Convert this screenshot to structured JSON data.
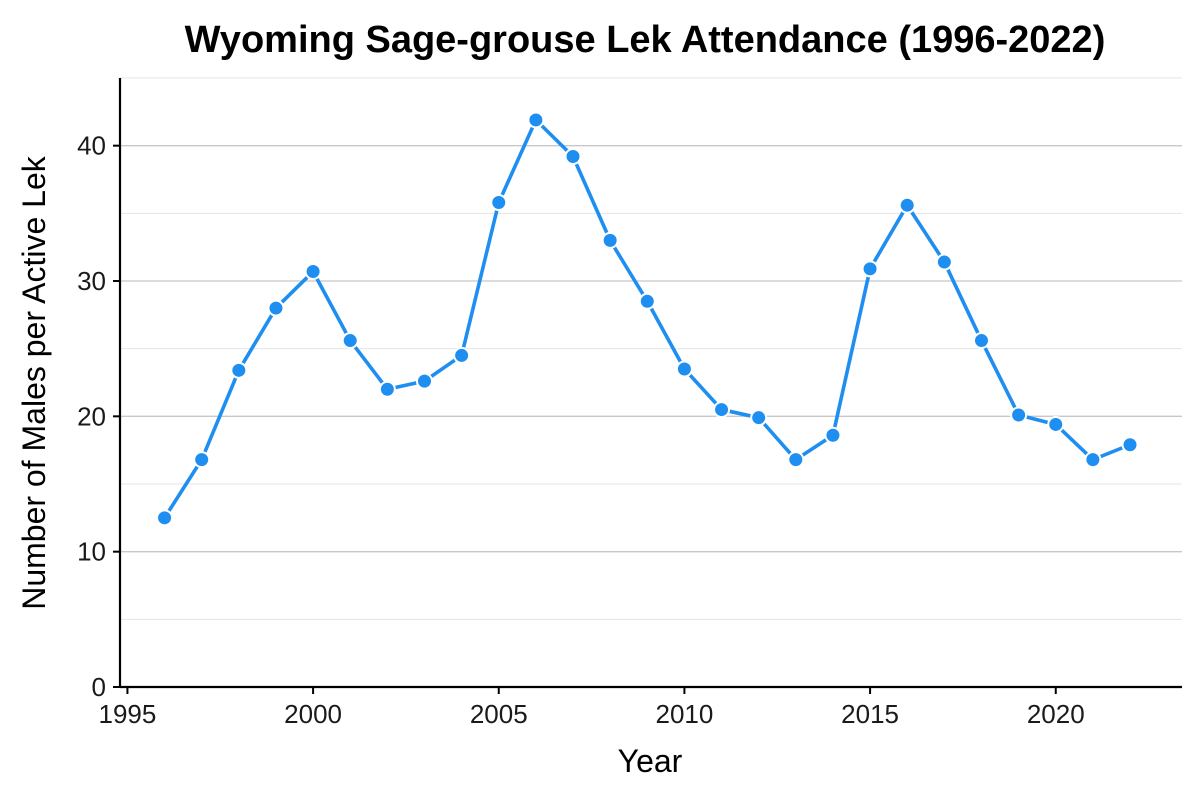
{
  "chart_data": {
    "type": "line",
    "title": "Wyoming Sage-grouse Lek Attendance (1996-2022)",
    "xlabel": "Year",
    "ylabel": "Number of Males per Active Lek",
    "x": [
      1996,
      1997,
      1998,
      1999,
      2000,
      2001,
      2002,
      2003,
      2004,
      2005,
      2006,
      2007,
      2008,
      2009,
      2010,
      2011,
      2012,
      2013,
      2014,
      2015,
      2016,
      2017,
      2018,
      2019,
      2020,
      2021,
      2022
    ],
    "values": [
      12.5,
      16.8,
      23.4,
      28.0,
      30.7,
      25.6,
      22.0,
      22.6,
      24.5,
      35.8,
      41.9,
      39.2,
      33.0,
      28.5,
      23.5,
      20.5,
      19.9,
      16.8,
      18.6,
      30.9,
      35.6,
      31.4,
      25.6,
      20.1,
      19.4,
      16.8,
      17.9
    ],
    "xlim": [
      1994.8,
      2023.4
    ],
    "ylim": [
      0,
      45
    ],
    "xticks": [
      1995,
      2000,
      2005,
      2010,
      2015,
      2020
    ],
    "xtick_labels": [
      "1995",
      "2000",
      "2005",
      "2010",
      "2015",
      "2020"
    ],
    "yticks": [
      0,
      10,
      20,
      30,
      40
    ],
    "ytick_labels": [
      "0",
      "10",
      "20",
      "30",
      "40"
    ],
    "y_minor_gridlines": [
      5,
      15,
      25,
      35,
      45
    ],
    "grid": "horizontal",
    "line_color": "#1f8ef1",
    "marker_color": "#1f8ef1",
    "marker_edge_color": "#ffffff"
  }
}
